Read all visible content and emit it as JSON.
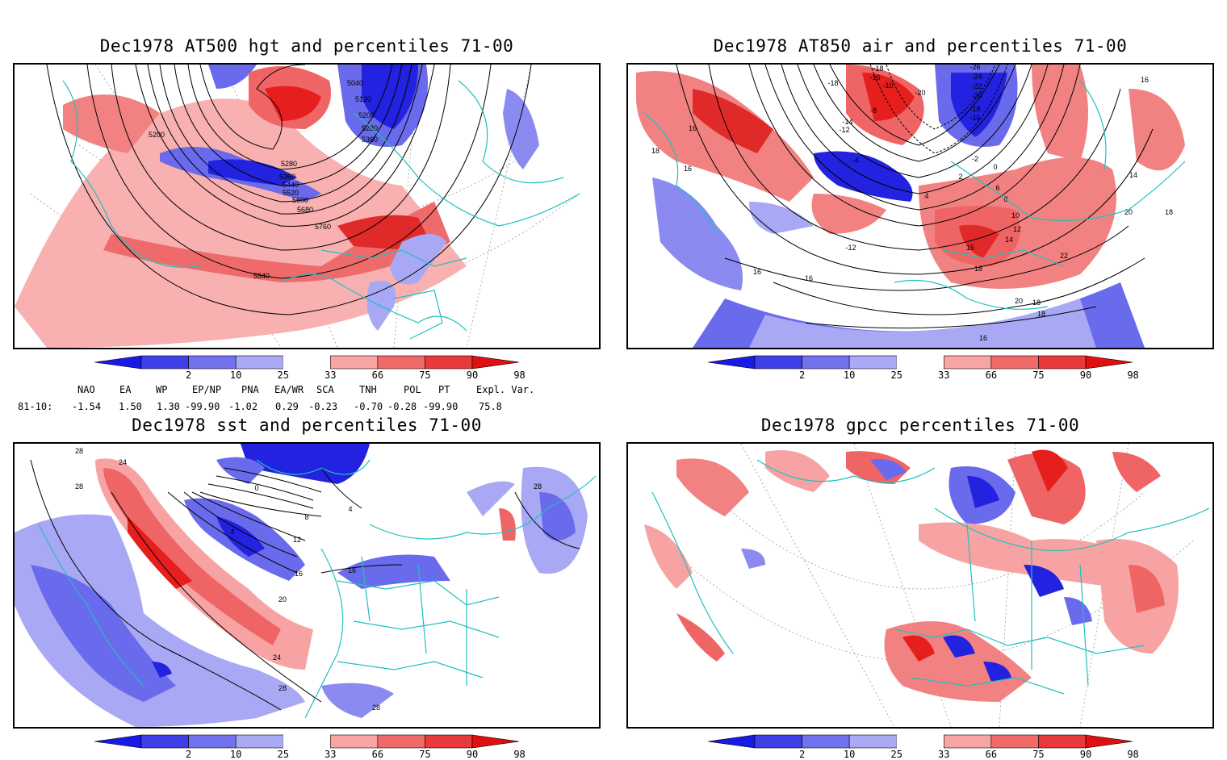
{
  "panels": [
    {
      "title": "Dec1978 AT500 hgt and percentiles 71-00",
      "contour_labels": [
        "5040",
        "5120",
        "5200",
        "5280",
        "5360",
        "5200",
        "5280",
        "5360",
        "5440",
        "5520",
        "5600",
        "5680",
        "5760",
        "5840"
      ]
    },
    {
      "title": "Dec1978 AT850 air and percentiles 71-00",
      "contour_labels": [
        "-18",
        "-16",
        "-10",
        "-26",
        "-24",
        "-22",
        "-20",
        "-18",
        "-16",
        "-14",
        "-12",
        "-8",
        "-20",
        "-18",
        "-4",
        "-2",
        "0",
        "2",
        "4",
        "6",
        "8",
        "10",
        "12",
        "14",
        "16",
        "18",
        "20",
        "22",
        "16",
        "18",
        "16",
        "16",
        "16",
        "18",
        "-12",
        "16",
        "14",
        "18",
        "20",
        "18",
        "16"
      ]
    },
    {
      "title": "Dec1978 sst and percentiles 71-00",
      "contour_labels": [
        "28",
        "24",
        "28",
        "0",
        "4",
        "8",
        "4",
        "12",
        "16",
        "16",
        "20",
        "24",
        "28",
        "28",
        "28"
      ]
    },
    {
      "title": "Dec1978 gpcc percentiles 71-00",
      "contour_labels": []
    }
  ],
  "colorbar": {
    "ticks": [
      "2",
      "10",
      "25",
      "33",
      "66",
      "75",
      "90",
      "98"
    ],
    "colors": [
      "#1a1ae6",
      "#3f3fe8",
      "#7272ee",
      "#a9a9f5",
      "#ffffff",
      "#f9a5a5",
      "#f06a6a",
      "#e83a3a",
      "#e01010"
    ]
  },
  "indices": {
    "headers": [
      "NAO",
      "EA",
      "WP",
      "EP/NP",
      "PNA",
      "EA/WR",
      "SCA",
      "TNH",
      "POL",
      "PT",
      "Expl. Var."
    ],
    "row_label": "81-10:",
    "values": [
      "-1.54",
      "1.50",
      "1.30",
      "-99.90",
      "-1.02",
      "0.29",
      "-0.23",
      "-0.70",
      "-0.28",
      "-99.90",
      "75.8"
    ]
  },
  "colors": {
    "coast": "#20c0c0",
    "blue_strong": "#2222e0",
    "blue_mid": "#6a6aec",
    "blue_light": "#a8a8f4",
    "red_light": "#f7a3a3",
    "red_mid": "#ef6464",
    "red_strong": "#e61e1e"
  }
}
